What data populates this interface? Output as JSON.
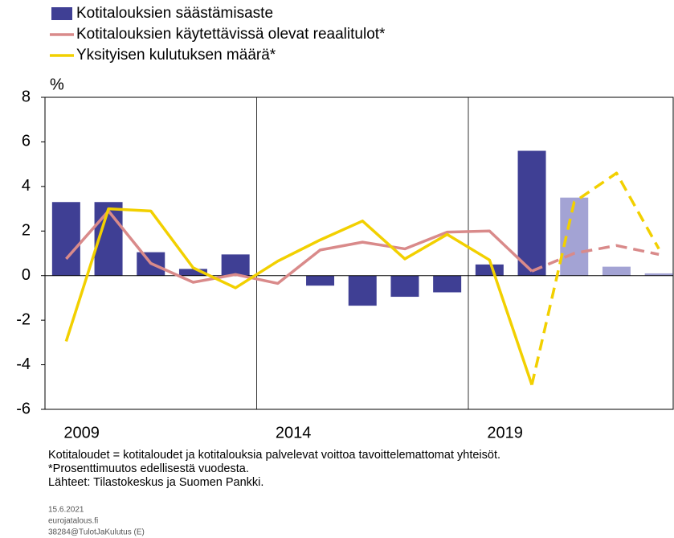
{
  "chart_data": {
    "type": "bar_line",
    "y_unit": "%",
    "categories": [
      "2009",
      null,
      null,
      null,
      null,
      "2014",
      null,
      null,
      null,
      null,
      "2019",
      null,
      null,
      null,
      null
    ],
    "series": [
      {
        "name": "Kotitalouksien säästämisaste",
        "kind": "bar",
        "color": "#3f3f94",
        "light_color": "#a3a3d4",
        "light_from": 12,
        "values": [
          3.3,
          3.3,
          1.05,
          0.3,
          0.95,
          null,
          -0.45,
          -1.35,
          -0.95,
          -0.75,
          0.5,
          5.6,
          3.5,
          0.4,
          0.1
        ]
      },
      {
        "name": "Kotitalouksien käytettävissä olevat reaalitulot*",
        "kind": "line",
        "color": "#d98a8a",
        "dash_from": 11,
        "values": [
          0.75,
          2.9,
          0.55,
          -0.3,
          0.05,
          -0.35,
          1.15,
          1.5,
          1.2,
          1.95,
          2.0,
          0.2,
          1.0,
          1.35,
          0.95
        ]
      },
      {
        "name": "Yksityisen kulutuksen määrä*",
        "kind": "line",
        "color": "#f2d000",
        "dash_from": 11,
        "values": [
          -2.95,
          3.0,
          2.9,
          0.35,
          -0.55,
          0.65,
          1.6,
          2.45,
          0.75,
          1.85,
          0.7,
          -4.9,
          3.3,
          4.6,
          1.2
        ]
      }
    ],
    "ylim": [
      -6,
      8
    ],
    "yticks": [
      -6,
      -4,
      -2,
      0,
      2,
      4,
      6,
      8
    ],
    "notes": [
      "Kotitaloudet = kotitaloudet ja kotitalouksia palvelevat voittoa tavoittelemattomat yhteisöt.",
      "*Prosenttimuutos edellisestä vuodesta.",
      "Lähteet: Tilastokeskus ja Suomen Pankki."
    ],
    "footer": [
      "15.6.2021",
      "eurojatalous.fi",
      "38284@TulotJaKulutus (E)"
    ]
  }
}
